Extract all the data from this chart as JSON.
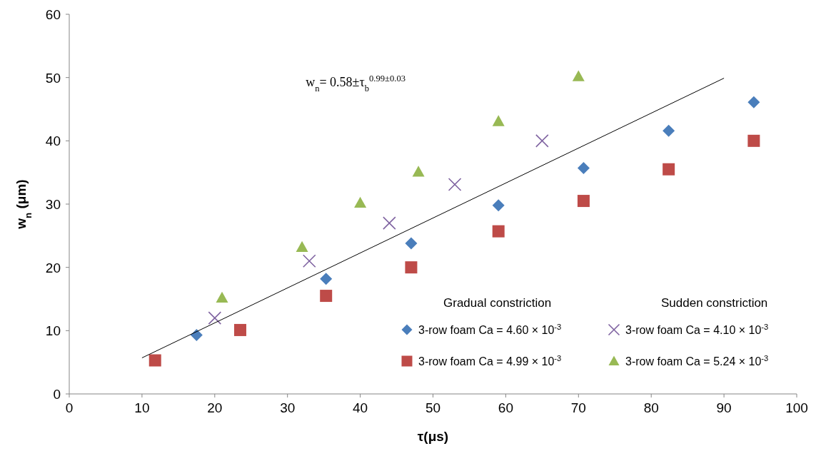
{
  "chart_data": {
    "type": "scatter",
    "xlabel": "τ(μs)",
    "ylabel": "w$_{n}$ (μm)",
    "xlim": [
      0,
      100
    ],
    "xticks": [
      0,
      10,
      20,
      30,
      40,
      50,
      60,
      70,
      80,
      90,
      100
    ],
    "ylim": [
      0,
      60
    ],
    "yticks": [
      0,
      10,
      20,
      30,
      40,
      50,
      60
    ],
    "legend": "bottom right",
    "grid": false,
    "annotations": [
      "w$_{n}$= 0.58±τ$_{b}$$^{0.99±0.03}$",
      "Gradual constriction",
      "Sudden constriction"
    ],
    "series": [
      {
        "name": "3-row foam Ca = 4.60 × 10$^{-3}$",
        "color": "#4a7ebb",
        "marker": "diamond",
        "x": [
          17.5,
          35.3,
          47,
          59,
          70.7,
          82.4,
          94.1
        ],
        "values": [
          9.3,
          18.2,
          23.8,
          29.8,
          35.7,
          41.6,
          46.1
        ]
      },
      {
        "name": "3-row foam Ca = 4.99 × 10$^{-3}$",
        "color": "#be4b48",
        "marker": "square",
        "x": [
          11.8,
          23.5,
          35.3,
          47,
          59,
          70.7,
          82.4,
          94.1
        ],
        "values": [
          5.3,
          10.1,
          15.5,
          20,
          25.7,
          30.5,
          35.5,
          40
        ]
      },
      {
        "name": "3-row foam Ca = 4.10 × 10$^{-3}$",
        "color": "#7f63a1",
        "marker": "cross",
        "x": [
          20,
          33,
          44,
          53,
          65
        ],
        "values": [
          12,
          21,
          27,
          33.1,
          40
        ]
      },
      {
        "name": "3-row foam Ca = 5.24 × 10$^{-3}$",
        "color": "#98b954",
        "marker": "triangle",
        "x": [
          21,
          32,
          40,
          48,
          59,
          70
        ],
        "values": [
          15.2,
          23.2,
          30.2,
          35.1,
          43.1,
          50.2
        ]
      },
      {
        "type": "line",
        "color": "#000000",
        "marker": "none",
        "x": [
          10,
          90
        ],
        "values": [
          5.7,
          49.9
        ]
      }
    ]
  }
}
